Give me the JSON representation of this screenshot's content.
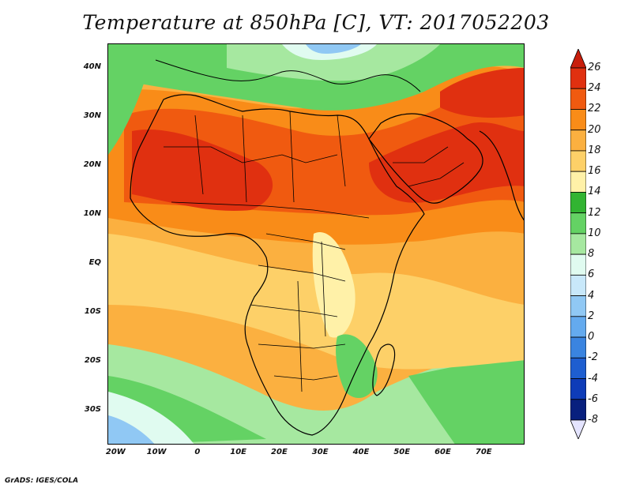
{
  "title": "Temperature at 850hPa [C], VT: 2017052203",
  "credit": "GrADS: IGES/COLA",
  "map": {
    "lon_range": [
      -22,
      80
    ],
    "lat_range": [
      -37,
      45
    ],
    "lat_ticks": [
      {
        "lat": 40,
        "label": "40N"
      },
      {
        "lat": 30,
        "label": "30N"
      },
      {
        "lat": 20,
        "label": "20N"
      },
      {
        "lat": 10,
        "label": "10N"
      },
      {
        "lat": 0,
        "label": "EQ"
      },
      {
        "lat": -10,
        "label": "10S"
      },
      {
        "lat": -20,
        "label": "20S"
      },
      {
        "lat": -30,
        "label": "30S"
      }
    ],
    "lon_ticks": [
      {
        "lon": -20,
        "label": "20W"
      },
      {
        "lon": -10,
        "label": "10W"
      },
      {
        "lon": 0,
        "label": "0"
      },
      {
        "lon": 10,
        "label": "10E"
      },
      {
        "lon": 20,
        "label": "20E"
      },
      {
        "lon": 30,
        "label": "30E"
      },
      {
        "lon": 40,
        "label": "40E"
      },
      {
        "lon": 50,
        "label": "50E"
      },
      {
        "lon": 60,
        "label": "60E"
      },
      {
        "lon": 70,
        "label": "70E"
      }
    ]
  },
  "colorbar": {
    "levels": [
      "26",
      "24",
      "22",
      "20",
      "18",
      "16",
      "14",
      "12",
      "10",
      "8",
      "6",
      "4",
      "2",
      "0",
      "-2",
      "-4",
      "-6",
      "-8"
    ],
    "colors": [
      "#e03010",
      "#f05a10",
      "#f98c18",
      "#fbb040",
      "#fdd068",
      "#fff1a8",
      "#32b432",
      "#64d264",
      "#a6e8a0",
      "#e0fbf0",
      "#c8e8fa",
      "#90c8f4",
      "#64aaee",
      "#3a84e0",
      "#1e5ed0",
      "#0e3cb8",
      "#08207e"
    ],
    "top_arrow_color": "#c81e0c",
    "bottom_arrow_color": "#e4e4ff"
  }
}
